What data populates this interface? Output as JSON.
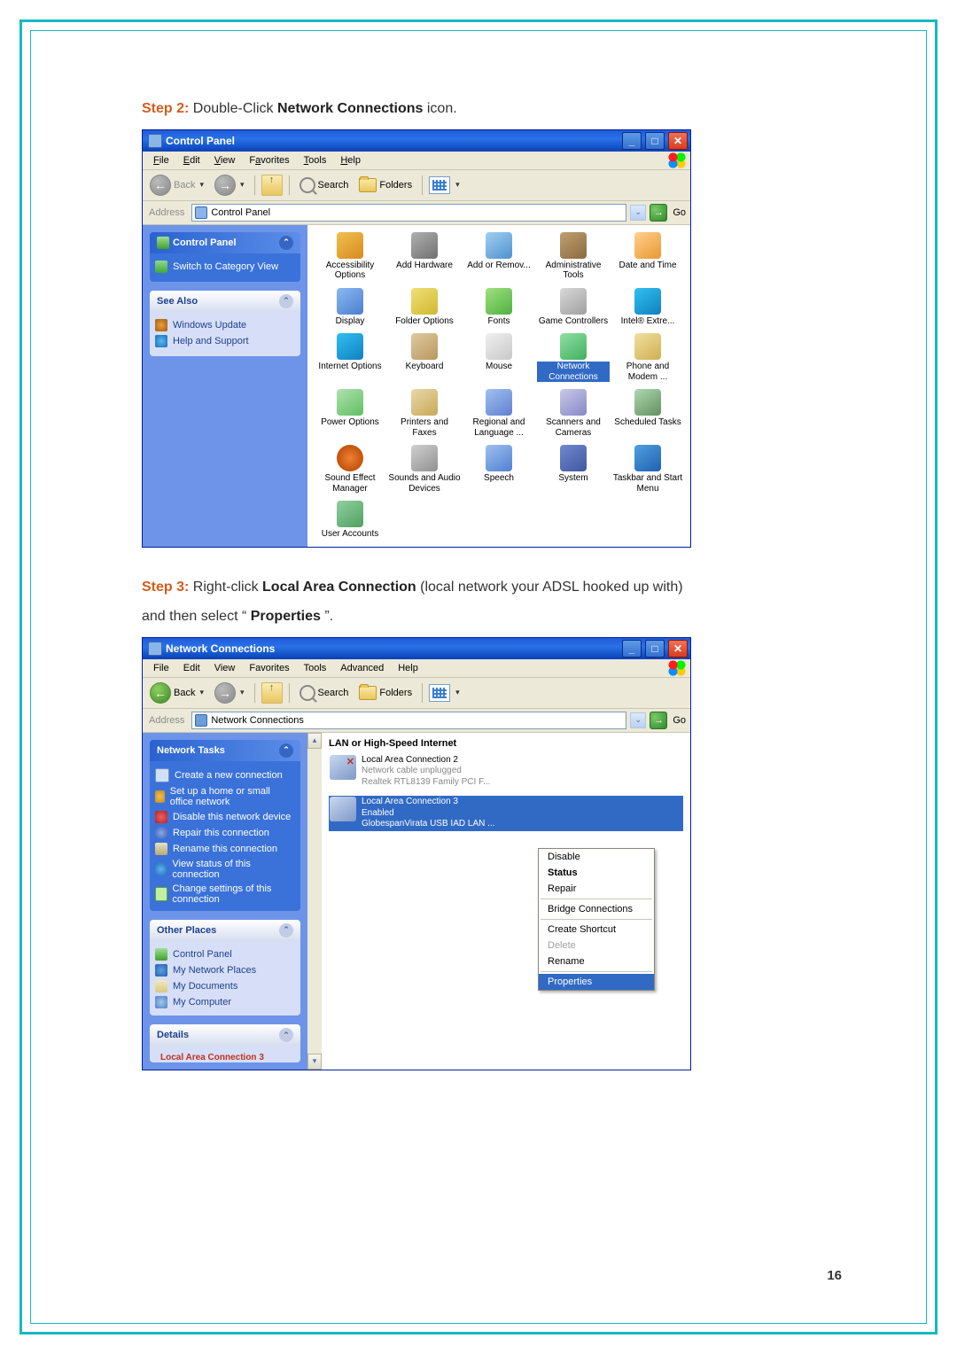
{
  "page_number": "16",
  "step2": {
    "label": "Step 2:",
    "before": " Double-Click ",
    "bold": "Network Connections",
    "after": " icon."
  },
  "step3": {
    "label": "Step 3:",
    "t1": " Right-click ",
    "b1": "Local Area Connection",
    "t2": " (local network your ADSL hooked up with)",
    "t3": "and then select “",
    "b2": "Properties",
    "t4": "”."
  },
  "menus": {
    "file": "ile",
    "edit": "dit",
    "view": "iew",
    "favorites": "vorites",
    "tools": "ools",
    "help": "elp"
  },
  "toolbar": {
    "back": "Back",
    "search": "Search",
    "folders": "Folders",
    "address": "Address",
    "go": "Go"
  },
  "cp": {
    "title": "Control Panel",
    "address": "Control Panel",
    "side": {
      "panel1": {
        "title": "Control Panel",
        "links": [
          "Switch to Category View"
        ]
      },
      "panel2": {
        "title": "See Also",
        "links": [
          "Windows Update",
          "Help and Support"
        ]
      }
    },
    "icons": [
      {
        "l": "Accessibility Options",
        "c": "c1"
      },
      {
        "l": "Add Hardware",
        "c": "c2"
      },
      {
        "l": "Add or Remov...",
        "c": "c3"
      },
      {
        "l": "Administrative Tools",
        "c": "c4"
      },
      {
        "l": "Date and Time",
        "c": "c5"
      },
      {
        "l": "Display",
        "c": "c6"
      },
      {
        "l": "Folder Options",
        "c": "c7"
      },
      {
        "l": "Fonts",
        "c": "c8"
      },
      {
        "l": "Game Controllers",
        "c": "c9"
      },
      {
        "l": "Intel® Extre...",
        "c": "c10"
      },
      {
        "l": "Internet Options",
        "c": "c10"
      },
      {
        "l": "Keyboard",
        "c": "c11"
      },
      {
        "l": "Mouse",
        "c": "c12"
      },
      {
        "l": "Network Connections",
        "c": "c13",
        "sel": true
      },
      {
        "l": "Phone and Modem ...",
        "c": "c25"
      },
      {
        "l": "Power Options",
        "c": "c14"
      },
      {
        "l": "Printers and Faxes",
        "c": "c15"
      },
      {
        "l": "Regional and Language ...",
        "c": "c16"
      },
      {
        "l": "Scanners and Cameras",
        "c": "c17"
      },
      {
        "l": "Scheduled Tasks",
        "c": "c18"
      },
      {
        "l": "Sound Effect Manager",
        "c": "c19"
      },
      {
        "l": "Sounds and Audio Devices",
        "c": "c20"
      },
      {
        "l": "Speech",
        "c": "c21"
      },
      {
        "l": "System",
        "c": "c22"
      },
      {
        "l": "Taskbar and Start Menu",
        "c": "c23"
      },
      {
        "l": "User Accounts",
        "c": "c24"
      }
    ]
  },
  "nc": {
    "title": "Network Connections",
    "address": "Network Connections",
    "menus": [
      "File",
      "Edit",
      "View",
      "Favorites",
      "Tools",
      "Advanced",
      "Help"
    ],
    "heading": "LAN or High-Speed Internet",
    "side": {
      "p1": {
        "title": "Network Tasks",
        "links": [
          {
            "t": "Create a new connection",
            "i": "mi-new"
          },
          {
            "t": "Set up a home or small office network",
            "i": "mi-home"
          },
          {
            "t": "Disable this network device",
            "i": "mi-disable"
          },
          {
            "t": "Repair this connection",
            "i": "mi-repair"
          },
          {
            "t": "Rename this connection",
            "i": "mi-rename"
          },
          {
            "t": "View status of this connection",
            "i": "mi-view"
          },
          {
            "t": "Change settings of this connection",
            "i": "mi-settings"
          }
        ]
      },
      "p2": {
        "title": "Other Places",
        "links": [
          {
            "t": "Control Panel",
            "i": "mi-cp"
          },
          {
            "t": "My Network Places",
            "i": "mi-net"
          },
          {
            "t": "My Documents",
            "i": "mi-doc"
          },
          {
            "t": "My Computer",
            "i": "mi-comp"
          }
        ]
      },
      "p3": {
        "title": "Details",
        "detail": "Local Area Connection 3"
      }
    },
    "items": [
      {
        "name": "Local Area Connection 2",
        "status": "Network cable unplugged",
        "device": "Realtek RTL8139 Family PCI F..."
      },
      {
        "name": "Local Area Connection 3",
        "status": "Enabled",
        "device": "GlobespanVirata USB IAD LAN ..."
      }
    ],
    "ctx": [
      {
        "t": "Disable",
        "type": "item"
      },
      {
        "t": "Status",
        "type": "bold"
      },
      {
        "t": "Repair",
        "type": "item"
      },
      {
        "type": "sep"
      },
      {
        "t": "Bridge Connections",
        "type": "item"
      },
      {
        "type": "sep"
      },
      {
        "t": "Create Shortcut",
        "type": "item"
      },
      {
        "t": "Delete",
        "type": "dis"
      },
      {
        "t": "Rename",
        "type": "item"
      },
      {
        "type": "sep"
      },
      {
        "t": "Properties",
        "type": "sel"
      }
    ]
  }
}
